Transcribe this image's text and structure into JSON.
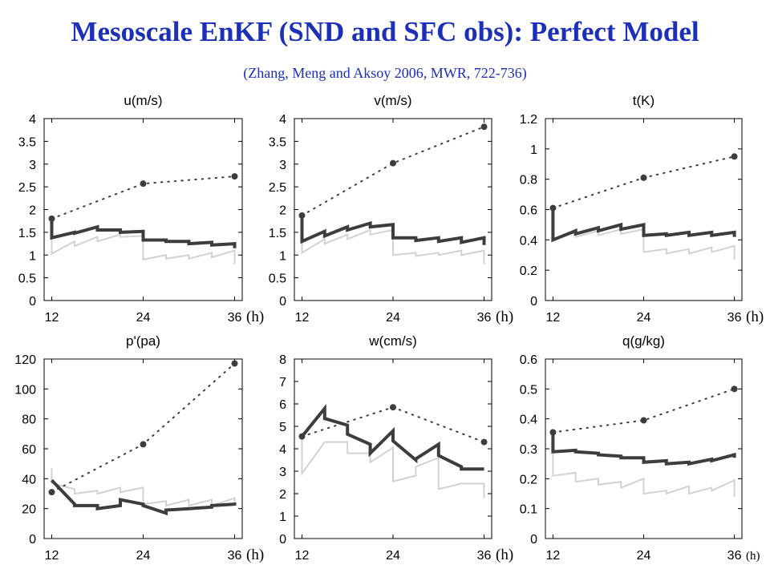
{
  "title": "Mesoscale EnKF (SND and SFC obs): Perfect Model",
  "subtitle": "(Zhang, Meng and Aksoy 2006, MWR, 722-736)",
  "colors": {
    "title": "#1c2fb8",
    "dark_line": "#3d3d3d",
    "light_line": "#d2d2d2",
    "dotted": "#3d3d3d"
  },
  "chart_data": [
    {
      "type": "line",
      "title": "u(m/s)",
      "xunit": "(h)",
      "xticks": [
        12,
        24,
        36
      ],
      "yticks": [
        "0",
        "0.5",
        "1",
        "1.5",
        "2",
        "2.5",
        "3",
        "3.5",
        "4"
      ],
      "xlim": [
        11,
        37
      ],
      "ylim": [
        0,
        4
      ],
      "series": [
        {
          "style": "dotted",
          "x": [
            12,
            24,
            36
          ],
          "y": [
            1.8,
            2.57,
            2.73
          ]
        },
        {
          "style": "thick",
          "x": [
            12,
            12,
            12,
            12,
            15,
            15,
            18,
            18,
            21,
            21,
            24,
            24,
            27,
            27,
            30,
            30,
            33,
            33,
            36,
            36
          ],
          "y": [
            1.8,
            1.38,
            1.38,
            1.38,
            1.5,
            1.48,
            1.62,
            1.55,
            1.55,
            1.5,
            1.52,
            1.33,
            1.33,
            1.3,
            1.3,
            1.25,
            1.28,
            1.22,
            1.25,
            1.15
          ]
        },
        {
          "style": "thin",
          "x": [
            12,
            12,
            15,
            15,
            18,
            18,
            21,
            21,
            24,
            24,
            27,
            27,
            30,
            30,
            33,
            33,
            36,
            36
          ],
          "y": [
            1.8,
            1.03,
            1.3,
            1.2,
            1.4,
            1.3,
            1.45,
            1.4,
            1.42,
            0.9,
            1.0,
            0.92,
            1.0,
            0.92,
            1.05,
            0.95,
            1.1,
            0.8
          ]
        }
      ]
    },
    {
      "type": "line",
      "title": "v(m/s)",
      "xunit": "(h)",
      "xticks": [
        12,
        24,
        36
      ],
      "yticks": [
        "0",
        "0.5",
        "1",
        "1.5",
        "2",
        "2.5",
        "3",
        "3.5",
        "4"
      ],
      "xlim": [
        11,
        37
      ],
      "ylim": [
        0,
        4
      ],
      "series": [
        {
          "style": "dotted",
          "x": [
            12,
            24,
            36
          ],
          "y": [
            1.87,
            3.02,
            3.82
          ]
        },
        {
          "style": "thick",
          "x": [
            12,
            12,
            15,
            15,
            18,
            18,
            21,
            21,
            24,
            24,
            27,
            27,
            30,
            30,
            33,
            33,
            36,
            36
          ],
          "y": [
            1.87,
            1.3,
            1.52,
            1.42,
            1.62,
            1.55,
            1.7,
            1.62,
            1.67,
            1.38,
            1.38,
            1.32,
            1.38,
            1.3,
            1.38,
            1.28,
            1.38,
            1.22
          ]
        },
        {
          "style": "thin",
          "x": [
            12,
            12,
            15,
            15,
            18,
            18,
            21,
            21,
            24,
            24,
            27,
            27,
            30,
            30,
            33,
            33,
            36,
            36
          ],
          "y": [
            1.87,
            1.05,
            1.35,
            1.25,
            1.45,
            1.35,
            1.55,
            1.45,
            1.55,
            1.0,
            1.05,
            0.98,
            1.05,
            1.0,
            1.1,
            1.0,
            1.1,
            0.8
          ]
        }
      ]
    },
    {
      "type": "line",
      "title": "t(K)",
      "xunit": "(h)",
      "xticks": [
        12,
        24,
        36
      ],
      "yticks": [
        "0",
        "0.2",
        "0.4",
        "0.6",
        "0.8",
        "1",
        "1.2"
      ],
      "xlim": [
        11,
        37
      ],
      "ylim": [
        0,
        1.2
      ],
      "series": [
        {
          "style": "dotted",
          "x": [
            12,
            24,
            36
          ],
          "y": [
            0.61,
            0.81,
            0.95
          ]
        },
        {
          "style": "thick",
          "x": [
            12,
            12,
            15,
            15,
            18,
            18,
            21,
            21,
            24,
            24,
            27,
            27,
            30,
            30,
            33,
            33,
            36,
            36
          ],
          "y": [
            0.61,
            0.4,
            0.46,
            0.44,
            0.48,
            0.46,
            0.5,
            0.47,
            0.5,
            0.43,
            0.44,
            0.43,
            0.45,
            0.43,
            0.45,
            0.43,
            0.45,
            0.42
          ]
        },
        {
          "style": "thin",
          "x": [
            12,
            12,
            15,
            15,
            18,
            18,
            21,
            21,
            24,
            24,
            27,
            27,
            30,
            30,
            33,
            33,
            36,
            36
          ],
          "y": [
            0.61,
            0.4,
            0.45,
            0.42,
            0.46,
            0.43,
            0.47,
            0.44,
            0.47,
            0.32,
            0.34,
            0.31,
            0.34,
            0.31,
            0.35,
            0.32,
            0.36,
            0.27
          ]
        }
      ]
    },
    {
      "type": "line",
      "title": "p'(pa)",
      "xunit": "(h)",
      "xticks": [
        12,
        24,
        36
      ],
      "yticks": [
        "0",
        "20",
        "40",
        "60",
        "80",
        "100",
        "120"
      ],
      "xlim": [
        11,
        37
      ],
      "ylim": [
        0,
        120
      ],
      "series": [
        {
          "style": "dotted",
          "x": [
            12,
            24,
            36
          ],
          "y": [
            31,
            63,
            117
          ]
        },
        {
          "style": "thick",
          "x": [
            12,
            15,
            15,
            18,
            18,
            21,
            21,
            24,
            24,
            27,
            27,
            30,
            30,
            33,
            33,
            36,
            36
          ],
          "y": [
            39,
            23,
            22,
            22,
            20,
            22,
            26,
            23,
            22,
            17,
            19,
            20,
            20,
            21,
            22,
            23,
            22
          ]
        },
        {
          "style": "thin",
          "x": [
            12,
            12,
            15,
            15,
            18,
            18,
            21,
            21,
            24,
            24,
            27,
            27,
            30,
            30,
            33,
            33,
            36,
            36
          ],
          "y": [
            47,
            37,
            33,
            30,
            32,
            30,
            34,
            31,
            34,
            23,
            25,
            22,
            26,
            22,
            26,
            22,
            27,
            22
          ]
        }
      ]
    },
    {
      "type": "line",
      "title": "w(cm/s)",
      "xunit": "(h)",
      "xticks": [
        12,
        24,
        36
      ],
      "yticks": [
        "0",
        "1",
        "2",
        "3",
        "4",
        "5",
        "6",
        "7",
        "8"
      ],
      "xlim": [
        11,
        37
      ],
      "ylim": [
        0,
        8
      ],
      "series": [
        {
          "style": "dotted",
          "x": [
            12,
            24,
            36
          ],
          "y": [
            4.55,
            5.85,
            4.3
          ]
        },
        {
          "style": "thick",
          "x": [
            12,
            15,
            15,
            18,
            18,
            21,
            21,
            24,
            24,
            27,
            27,
            30,
            30,
            33,
            33,
            36
          ],
          "y": [
            4.55,
            5.8,
            5.35,
            5.05,
            4.65,
            4.2,
            3.8,
            4.8,
            4.35,
            3.5,
            3.55,
            4.2,
            3.7,
            3.2,
            3.1,
            3.1
          ]
        },
        {
          "style": "thin",
          "x": [
            12,
            12,
            15,
            15,
            18,
            18,
            21,
            21,
            24,
            24,
            27,
            27,
            30,
            30,
            33,
            33,
            36,
            36
          ],
          "y": [
            4.55,
            2.9,
            4.3,
            4.3,
            4.3,
            3.8,
            3.8,
            3.4,
            4.05,
            2.55,
            2.8,
            3.2,
            3.6,
            2.2,
            2.45,
            2.45,
            2.45,
            1.8
          ]
        }
      ]
    },
    {
      "type": "line",
      "title": "q(g/kg)",
      "xunit": "(h)",
      "xticks": [
        12,
        24,
        36
      ],
      "yticks": [
        "0",
        "0.1",
        "0.2",
        "0.3",
        "0.4",
        "0.5",
        "0.6"
      ],
      "xlim": [
        11,
        37
      ],
      "ylim": [
        0,
        0.6
      ],
      "series": [
        {
          "style": "dotted",
          "x": [
            12,
            24,
            36
          ],
          "y": [
            0.355,
            0.395,
            0.5
          ]
        },
        {
          "style": "thick",
          "x": [
            12,
            12,
            15,
            15,
            18,
            18,
            21,
            21,
            24,
            24,
            27,
            27,
            30,
            30,
            33,
            33,
            36,
            36
          ],
          "y": [
            0.355,
            0.29,
            0.295,
            0.29,
            0.285,
            0.28,
            0.275,
            0.27,
            0.27,
            0.255,
            0.26,
            0.25,
            0.255,
            0.25,
            0.265,
            0.26,
            0.28,
            0.27
          ]
        },
        {
          "style": "thin",
          "x": [
            12,
            12,
            15,
            15,
            18,
            18,
            21,
            21,
            24,
            24,
            27,
            27,
            30,
            30,
            33,
            33,
            36,
            36
          ],
          "y": [
            0.355,
            0.21,
            0.22,
            0.19,
            0.2,
            0.18,
            0.19,
            0.17,
            0.2,
            0.15,
            0.16,
            0.15,
            0.175,
            0.15,
            0.17,
            0.16,
            0.195,
            0.14
          ]
        }
      ]
    }
  ]
}
